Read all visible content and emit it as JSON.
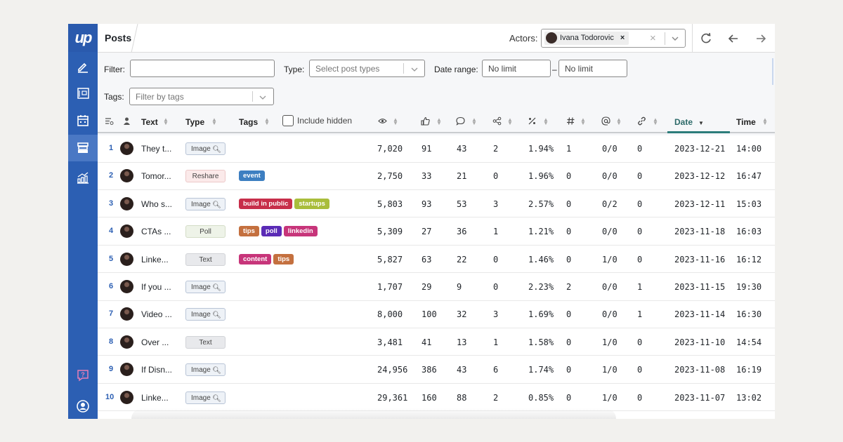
{
  "app": {
    "logo": "up"
  },
  "colors": {
    "sidebar": "#2c5fb3",
    "accent": "#2d7d7b",
    "link": "#2c5fb3"
  },
  "sidebar": {
    "items": [
      {
        "icon": "pen-icon",
        "active": false
      },
      {
        "icon": "newspaper-icon",
        "active": false
      },
      {
        "icon": "calendar-icon",
        "active": false
      },
      {
        "icon": "archive-icon",
        "active": true
      },
      {
        "icon": "analytics-icon",
        "active": false
      }
    ],
    "bottom": [
      {
        "icon": "help-icon"
      },
      {
        "icon": "user-icon"
      }
    ]
  },
  "header": {
    "title": "Posts",
    "actors_label": "Actors:",
    "actor_name": "Ivana Todorovic",
    "actor_remove": "×",
    "clear": "×",
    "icons": [
      "refresh-icon",
      "arrow-left-icon",
      "arrow-right-icon"
    ]
  },
  "filters": {
    "filter_label": "Filter:",
    "filter_value": "",
    "type_label": "Type:",
    "type_placeholder": "Select post types",
    "date_label": "Date range:",
    "date_from": "No limit",
    "date_sep": "–",
    "date_to": "No limit",
    "tags_label": "Tags:",
    "tags_placeholder": "Filter by tags",
    "include_hidden": "Include hidden",
    "include_hidden_checked": false
  },
  "table": {
    "headers": {
      "text": "Text",
      "type": "Type",
      "tags": "Tags",
      "date": "Date",
      "time": "Time"
    },
    "sorted_column": "Date",
    "rows": [
      {
        "n": "1",
        "text": "They t...",
        "type": "Image",
        "tags": [],
        "views": "7,020",
        "likes": "91",
        "comments": "43",
        "shares": "2",
        "rate": "1.94%",
        "hash": "1",
        "mentions": "0/0",
        "links": "0",
        "date": "2023-12-21",
        "time": "14:00"
      },
      {
        "n": "2",
        "text": "Tomor...",
        "type": "Reshare",
        "tags": [
          {
            "label": "event",
            "color": "#3d7fc1"
          }
        ],
        "views": "2,750",
        "likes": "33",
        "comments": "21",
        "shares": "0",
        "rate": "1.96%",
        "hash": "0",
        "mentions": "0/0",
        "links": "0",
        "date": "2023-12-12",
        "time": "16:47"
      },
      {
        "n": "3",
        "text": "Who s...",
        "type": "Image",
        "tags": [
          {
            "label": "build in public",
            "color": "#c72e4a"
          },
          {
            "label": "startups",
            "color": "#a9bd3b"
          }
        ],
        "views": "5,803",
        "likes": "93",
        "comments": "53",
        "shares": "3",
        "rate": "2.57%",
        "hash": "0",
        "mentions": "0/2",
        "links": "0",
        "date": "2023-12-11",
        "time": "15:03"
      },
      {
        "n": "4",
        "text": "CTAs ...",
        "type": "Poll",
        "tags": [
          {
            "label": "tips",
            "color": "#c4703f"
          },
          {
            "label": "poll",
            "color": "#5a2bb6"
          },
          {
            "label": "linkedin",
            "color": "#c7357a"
          }
        ],
        "views": "5,309",
        "likes": "27",
        "comments": "36",
        "shares": "1",
        "rate": "1.21%",
        "hash": "0",
        "mentions": "0/0",
        "links": "0",
        "date": "2023-11-18",
        "time": "16:03"
      },
      {
        "n": "5",
        "text": "Linke...",
        "type": "Text",
        "tags": [
          {
            "label": "content",
            "color": "#c7357a"
          },
          {
            "label": "tips",
            "color": "#c4703f"
          }
        ],
        "views": "5,827",
        "likes": "63",
        "comments": "22",
        "shares": "0",
        "rate": "1.46%",
        "hash": "0",
        "mentions": "1/0",
        "links": "0",
        "date": "2023-11-16",
        "time": "16:12"
      },
      {
        "n": "6",
        "text": "If you ...",
        "type": "Image",
        "tags": [],
        "views": "1,707",
        "likes": "29",
        "comments": "9",
        "shares": "0",
        "rate": "2.23%",
        "hash": "2",
        "mentions": "0/0",
        "links": "1",
        "date": "2023-11-15",
        "time": "19:30"
      },
      {
        "n": "7",
        "text": "Video ...",
        "type": "Image",
        "tags": [],
        "views": "8,000",
        "likes": "100",
        "comments": "32",
        "shares": "3",
        "rate": "1.69%",
        "hash": "0",
        "mentions": "0/0",
        "links": "1",
        "date": "2023-11-14",
        "time": "16:30"
      },
      {
        "n": "8",
        "text": "Over ...",
        "type": "Text",
        "tags": [],
        "views": "3,481",
        "likes": "41",
        "comments": "13",
        "shares": "1",
        "rate": "1.58%",
        "hash": "0",
        "mentions": "1/0",
        "links": "0",
        "date": "2023-11-10",
        "time": "14:54"
      },
      {
        "n": "9",
        "text": "If Disn...",
        "type": "Image",
        "tags": [],
        "views": "24,956",
        "likes": "386",
        "comments": "43",
        "shares": "6",
        "rate": "1.74%",
        "hash": "0",
        "mentions": "1/0",
        "links": "0",
        "date": "2023-11-08",
        "time": "16:19"
      },
      {
        "n": "10",
        "text": "Linke...",
        "type": "Image",
        "tags": [],
        "views": "29,361",
        "likes": "160",
        "comments": "88",
        "shares": "2",
        "rate": "0.85%",
        "hash": "0",
        "mentions": "1/0",
        "links": "0",
        "date": "2023-11-07",
        "time": "13:02"
      }
    ]
  }
}
